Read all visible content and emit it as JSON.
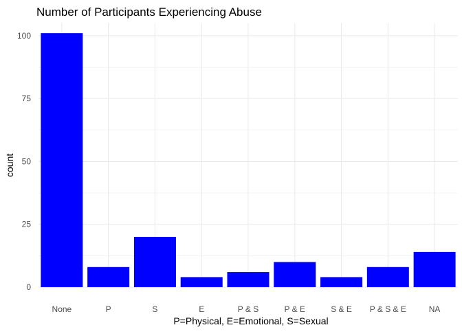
{
  "chart_data": {
    "type": "bar",
    "title": "Number of Participants Experiencing Abuse",
    "xlabel": "P=Physical, E=Emotional, S=Sexual",
    "ylabel": "count",
    "categories": [
      "None",
      "P",
      "S",
      "E",
      "P & S",
      "P & E",
      "S & E",
      "P & S & E",
      "NA"
    ],
    "values": [
      101,
      8,
      20,
      4,
      6,
      10,
      4,
      8,
      14
    ],
    "ylim": [
      0,
      105
    ],
    "yticks": [
      0,
      25,
      50,
      75,
      100
    ],
    "grid": true,
    "legend": "none",
    "bar_color": "#0000FF",
    "grid_color": "#EBEBEB"
  }
}
